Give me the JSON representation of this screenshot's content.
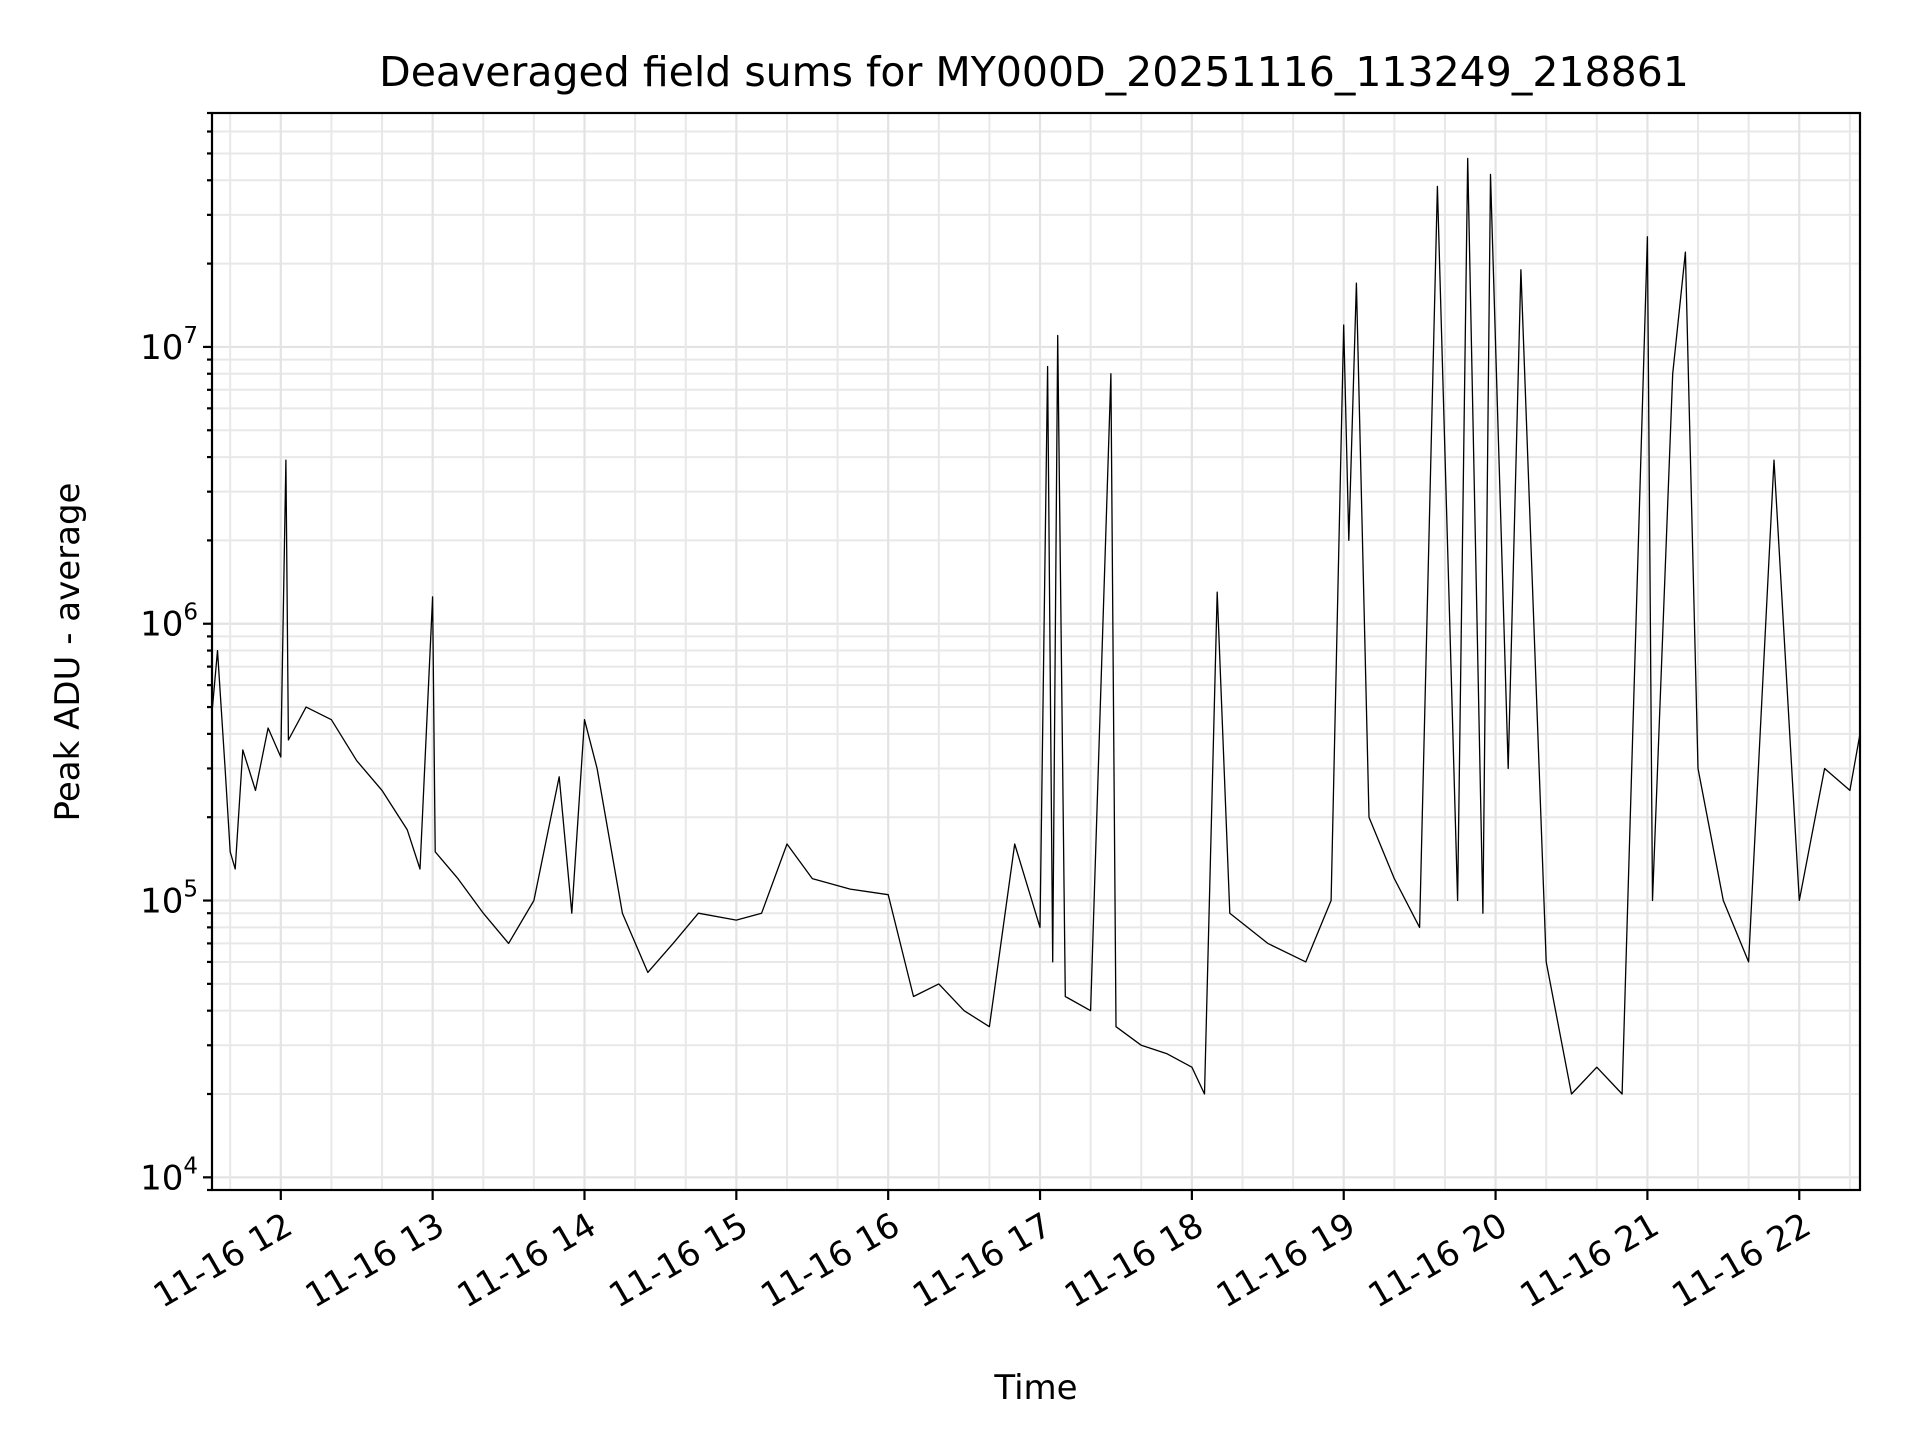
{
  "chart_data": {
    "type": "line",
    "title": "Deaveraged field sums for MY000D_20251116_113249_218861",
    "xlabel": "Time",
    "ylabel": "Peak ADU - average",
    "yscale": "log",
    "xlim": [
      "2025-11-16T11:32:49",
      "2025-11-16T22:24:00"
    ],
    "ylim": [
      9000,
      70000000
    ],
    "grid": "both",
    "x_ticks": [
      {
        "value": "2025-11-16T12:00",
        "label": "11-16 12"
      },
      {
        "value": "2025-11-16T13:00",
        "label": "11-16 13"
      },
      {
        "value": "2025-11-16T14:00",
        "label": "11-16 14"
      },
      {
        "value": "2025-11-16T15:00",
        "label": "11-16 15"
      },
      {
        "value": "2025-11-16T16:00",
        "label": "11-16 16"
      },
      {
        "value": "2025-11-16T17:00",
        "label": "11-16 17"
      },
      {
        "value": "2025-11-16T18:00",
        "label": "11-16 18"
      },
      {
        "value": "2025-11-16T19:00",
        "label": "11-16 19"
      },
      {
        "value": "2025-11-16T20:00",
        "label": "11-16 20"
      },
      {
        "value": "2025-11-16T21:00",
        "label": "11-16 21"
      },
      {
        "value": "2025-11-16T22:00",
        "label": "11-16 22"
      }
    ],
    "y_ticks": [
      {
        "value": 10000,
        "base": "10",
        "exp": "4"
      },
      {
        "value": 100000,
        "base": "10",
        "exp": "5"
      },
      {
        "value": 1000000,
        "base": "10",
        "exp": "6"
      },
      {
        "value": 10000000,
        "base": "10",
        "exp": "7"
      }
    ],
    "series": [
      {
        "color": "#000000",
        "points": [
          [
            "2025-11-16T11:33",
            500000
          ],
          [
            "2025-11-16T11:35",
            800000
          ],
          [
            "2025-11-16T11:38",
            300000
          ],
          [
            "2025-11-16T11:40",
            150000
          ],
          [
            "2025-11-16T11:42",
            130000
          ],
          [
            "2025-11-16T11:45",
            350000
          ],
          [
            "2025-11-16T11:50",
            250000
          ],
          [
            "2025-11-16T11:55",
            420000
          ],
          [
            "2025-11-16T12:00",
            330000
          ],
          [
            "2025-11-16T12:02",
            3900000
          ],
          [
            "2025-11-16T12:03",
            380000
          ],
          [
            "2025-11-16T12:10",
            500000
          ],
          [
            "2025-11-16T12:20",
            450000
          ],
          [
            "2025-11-16T12:30",
            320000
          ],
          [
            "2025-11-16T12:40",
            250000
          ],
          [
            "2025-11-16T12:50",
            180000
          ],
          [
            "2025-11-16T12:55",
            130000
          ],
          [
            "2025-11-16T13:00",
            1250000
          ],
          [
            "2025-11-16T13:01",
            150000
          ],
          [
            "2025-11-16T13:10",
            120000
          ],
          [
            "2025-11-16T13:20",
            90000
          ],
          [
            "2025-11-16T13:30",
            70000
          ],
          [
            "2025-11-16T13:40",
            100000
          ],
          [
            "2025-11-16T13:50",
            280000
          ],
          [
            "2025-11-16T13:55",
            90000
          ],
          [
            "2025-11-16T14:00",
            450000
          ],
          [
            "2025-11-16T14:05",
            300000
          ],
          [
            "2025-11-16T14:15",
            90000
          ],
          [
            "2025-11-16T14:25",
            55000
          ],
          [
            "2025-11-16T14:35",
            70000
          ],
          [
            "2025-11-16T14:45",
            90000
          ],
          [
            "2025-11-16T15:00",
            85000
          ],
          [
            "2025-11-16T15:10",
            90000
          ],
          [
            "2025-11-16T15:20",
            160000
          ],
          [
            "2025-11-16T15:30",
            120000
          ],
          [
            "2025-11-16T15:45",
            110000
          ],
          [
            "2025-11-16T16:00",
            105000
          ],
          [
            "2025-11-16T16:10",
            45000
          ],
          [
            "2025-11-16T16:20",
            50000
          ],
          [
            "2025-11-16T16:30",
            40000
          ],
          [
            "2025-11-16T16:40",
            35000
          ],
          [
            "2025-11-16T16:50",
            160000
          ],
          [
            "2025-11-16T17:00",
            80000
          ],
          [
            "2025-11-16T17:03",
            8500000
          ],
          [
            "2025-11-16T17:05",
            60000
          ],
          [
            "2025-11-16T17:07",
            11000000
          ],
          [
            "2025-11-16T17:10",
            45000
          ],
          [
            "2025-11-16T17:20",
            40000
          ],
          [
            "2025-11-16T17:28",
            8000000
          ],
          [
            "2025-11-16T17:30",
            35000
          ],
          [
            "2025-11-16T17:40",
            30000
          ],
          [
            "2025-11-16T17:50",
            28000
          ],
          [
            "2025-11-16T18:00",
            25000
          ],
          [
            "2025-11-16T18:05",
            20000
          ],
          [
            "2025-11-16T18:10",
            1300000
          ],
          [
            "2025-11-16T18:15",
            90000
          ],
          [
            "2025-11-16T18:30",
            70000
          ],
          [
            "2025-11-16T18:45",
            60000
          ],
          [
            "2025-11-16T18:55",
            100000
          ],
          [
            "2025-11-16T19:00",
            12000000
          ],
          [
            "2025-11-16T19:02",
            2000000
          ],
          [
            "2025-11-16T19:05",
            17000000
          ],
          [
            "2025-11-16T19:10",
            200000
          ],
          [
            "2025-11-16T19:20",
            120000
          ],
          [
            "2025-11-16T19:30",
            80000
          ],
          [
            "2025-11-16T19:37",
            38000000
          ],
          [
            "2025-11-16T19:45",
            100000
          ],
          [
            "2025-11-16T19:49",
            48000000
          ],
          [
            "2025-11-16T19:55",
            90000
          ],
          [
            "2025-11-16T19:58",
            42000000
          ],
          [
            "2025-11-16T20:05",
            300000
          ],
          [
            "2025-11-16T20:10",
            19000000
          ],
          [
            "2025-11-16T20:20",
            60000
          ],
          [
            "2025-11-16T20:30",
            20000
          ],
          [
            "2025-11-16T20:40",
            25000
          ],
          [
            "2025-11-16T20:50",
            20000
          ],
          [
            "2025-11-16T21:00",
            25000000
          ],
          [
            "2025-11-16T21:02",
            100000
          ],
          [
            "2025-11-16T21:10",
            8000000
          ],
          [
            "2025-11-16T21:15",
            22000000
          ],
          [
            "2025-11-16T21:20",
            300000
          ],
          [
            "2025-11-16T21:30",
            100000
          ],
          [
            "2025-11-16T21:40",
            60000
          ],
          [
            "2025-11-16T21:50",
            3900000
          ],
          [
            "2025-11-16T22:00",
            100000
          ],
          [
            "2025-11-16T22:10",
            300000
          ],
          [
            "2025-11-16T22:20",
            250000
          ],
          [
            "2025-11-16T22:24",
            400000
          ]
        ]
      }
    ]
  }
}
